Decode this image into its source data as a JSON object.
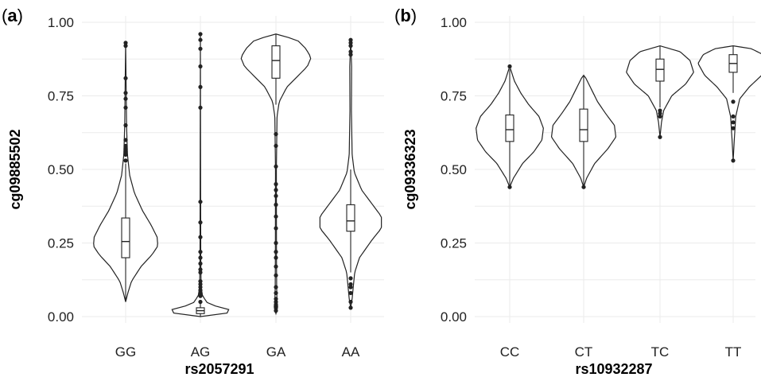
{
  "chart_data": [
    {
      "panel": "(a)",
      "type": "violin",
      "xlabel": "rs2057291",
      "ylabel": "cg09885502",
      "ylim": [
        0,
        1
      ],
      "yticks": [
        "0.00",
        "0.25",
        "0.50",
        "0.75",
        "1.00"
      ],
      "categories": [
        "GG",
        "AG",
        "GA",
        "AA"
      ],
      "grid": true,
      "series": [
        {
          "category": "GG",
          "min": 0.05,
          "max": 0.93,
          "q1": 0.2,
          "median": 0.255,
          "q3": 0.335,
          "whisker_low": 0.05,
          "whisker_high": 0.52,
          "width_profile": [
            [
              0.05,
              0.0
            ],
            [
              0.08,
              0.06
            ],
            [
              0.12,
              0.16
            ],
            [
              0.17,
              0.42
            ],
            [
              0.21,
              0.72
            ],
            [
              0.24,
              0.88
            ],
            [
              0.27,
              0.86
            ],
            [
              0.31,
              0.7
            ],
            [
              0.36,
              0.46
            ],
            [
              0.42,
              0.24
            ],
            [
              0.48,
              0.11
            ],
            [
              0.55,
              0.05
            ],
            [
              0.65,
              0.025
            ],
            [
              0.8,
              0.012
            ],
            [
              0.93,
              0.0
            ]
          ],
          "outliers": [
            0.53,
            0.55,
            0.56,
            0.57,
            0.58,
            0.6,
            0.65,
            0.71,
            0.74,
            0.76,
            0.81,
            0.92,
            0.93
          ]
        },
        {
          "category": "AG",
          "min": 0.0,
          "max": 0.96,
          "q1": 0.01,
          "median": 0.02,
          "q3": 0.03,
          "whisker_low": 0.0,
          "whisker_high": 0.05,
          "width_profile": [
            [
              0.0,
              0.0
            ],
            [
              0.008,
              0.55
            ],
            [
              0.018,
              1.0
            ],
            [
              0.03,
              0.55
            ],
            [
              0.045,
              0.2
            ],
            [
              0.07,
              0.06
            ],
            [
              0.1,
              0.02
            ],
            [
              0.2,
              0.01
            ],
            [
              0.96,
              0.0
            ]
          ],
          "outliers": [
            0.05,
            0.07,
            0.08,
            0.09,
            0.1,
            0.11,
            0.12,
            0.15,
            0.16,
            0.18,
            0.2,
            0.22,
            0.27,
            0.32,
            0.39,
            0.71,
            0.78,
            0.85,
            0.91,
            0.94,
            0.96
          ]
        },
        {
          "category": "GA",
          "min": 0.01,
          "max": 0.96,
          "q1": 0.81,
          "median": 0.87,
          "q3": 0.92,
          "whisker_low": 0.72,
          "whisker_high": 0.96,
          "width_profile": [
            [
              0.01,
              0.0
            ],
            [
              0.03,
              0.05
            ],
            [
              0.05,
              0.03
            ],
            [
              0.1,
              0.02
            ],
            [
              0.2,
              0.015
            ],
            [
              0.5,
              0.012
            ],
            [
              0.68,
              0.03
            ],
            [
              0.73,
              0.09
            ],
            [
              0.78,
              0.3
            ],
            [
              0.82,
              0.62
            ],
            [
              0.85,
              0.86
            ],
            [
              0.88,
              0.96
            ],
            [
              0.91,
              0.82
            ],
            [
              0.94,
              0.58
            ],
            [
              0.96,
              0.0
            ]
          ],
          "outliers": [
            0.02,
            0.03,
            0.04,
            0.05,
            0.06,
            0.08,
            0.1,
            0.14,
            0.17,
            0.2,
            0.22,
            0.25,
            0.3,
            0.34,
            0.38,
            0.41,
            0.43,
            0.45,
            0.51,
            0.58,
            0.62
          ]
        },
        {
          "category": "AA",
          "min": 0.03,
          "max": 0.94,
          "q1": 0.29,
          "median": 0.325,
          "q3": 0.38,
          "whisker_low": 0.15,
          "whisker_high": 0.5,
          "width_profile": [
            [
              0.03,
              0.0
            ],
            [
              0.06,
              0.04
            ],
            [
              0.1,
              0.07
            ],
            [
              0.15,
              0.11
            ],
            [
              0.2,
              0.24
            ],
            [
              0.26,
              0.58
            ],
            [
              0.3,
              0.84
            ],
            [
              0.34,
              0.84
            ],
            [
              0.38,
              0.6
            ],
            [
              0.43,
              0.3
            ],
            [
              0.49,
              0.1
            ],
            [
              0.55,
              0.04
            ],
            [
              0.7,
              0.02
            ],
            [
              0.85,
              0.025
            ],
            [
              0.94,
              0.0
            ]
          ],
          "outliers": [
            0.03,
            0.05,
            0.08,
            0.1,
            0.11,
            0.13,
            0.89,
            0.9,
            0.92,
            0.93,
            0.94
          ]
        }
      ]
    },
    {
      "panel": "(b)",
      "type": "violin",
      "xlabel": "rs10932287",
      "ylabel": "cg09336323",
      "ylim": [
        0,
        1
      ],
      "yticks": [
        "0.00",
        "0.25",
        "0.50",
        "0.75",
        "1.00"
      ],
      "categories": [
        "CC",
        "CT",
        "TC",
        "TT"
      ],
      "grid": true,
      "series": [
        {
          "category": "CC",
          "min": 0.44,
          "max": 0.85,
          "q1": 0.595,
          "median": 0.635,
          "q3": 0.685,
          "whisker_low": 0.44,
          "whisker_high": 0.84,
          "width_profile": [
            [
              0.44,
              0.0
            ],
            [
              0.47,
              0.1
            ],
            [
              0.52,
              0.35
            ],
            [
              0.56,
              0.66
            ],
            [
              0.6,
              0.88
            ],
            [
              0.64,
              0.92
            ],
            [
              0.68,
              0.8
            ],
            [
              0.72,
              0.52
            ],
            [
              0.76,
              0.3
            ],
            [
              0.8,
              0.13
            ],
            [
              0.85,
              0.0
            ]
          ],
          "outliers": [
            0.44,
            0.85
          ]
        },
        {
          "category": "CT",
          "min": 0.44,
          "max": 0.82,
          "q1": 0.595,
          "median": 0.635,
          "q3": 0.705,
          "whisker_low": 0.44,
          "whisker_high": 0.82,
          "width_profile": [
            [
              0.44,
              0.0
            ],
            [
              0.47,
              0.08
            ],
            [
              0.52,
              0.3
            ],
            [
              0.57,
              0.66
            ],
            [
              0.61,
              0.88
            ],
            [
              0.65,
              0.84
            ],
            [
              0.69,
              0.6
            ],
            [
              0.73,
              0.38
            ],
            [
              0.77,
              0.22
            ],
            [
              0.81,
              0.06
            ],
            [
              0.82,
              0.0
            ]
          ],
          "outliers": [
            0.44
          ]
        },
        {
          "category": "TC",
          "min": 0.61,
          "max": 0.92,
          "q1": 0.8,
          "median": 0.84,
          "q3": 0.875,
          "whisker_low": 0.71,
          "whisker_high": 0.92,
          "width_profile": [
            [
              0.61,
              0.0
            ],
            [
              0.66,
              0.04
            ],
            [
              0.7,
              0.1
            ],
            [
              0.75,
              0.32
            ],
            [
              0.79,
              0.7
            ],
            [
              0.83,
              0.92
            ],
            [
              0.87,
              0.82
            ],
            [
              0.9,
              0.55
            ],
            [
              0.92,
              0.0
            ]
          ],
          "outliers": [
            0.61,
            0.68,
            0.69,
            0.7
          ]
        },
        {
          "category": "TT",
          "min": 0.53,
          "max": 0.92,
          "q1": 0.83,
          "median": 0.86,
          "q3": 0.89,
          "whisker_low": 0.76,
          "whisker_high": 0.92,
          "width_profile": [
            [
              0.53,
              0.0
            ],
            [
              0.6,
              0.03
            ],
            [
              0.68,
              0.07
            ],
            [
              0.74,
              0.18
            ],
            [
              0.78,
              0.44
            ],
            [
              0.82,
              0.78
            ],
            [
              0.86,
              0.96
            ],
            [
              0.89,
              0.82
            ],
            [
              0.91,
              0.5
            ],
            [
              0.92,
              0.0
            ]
          ],
          "outliers": [
            0.53,
            0.64,
            0.66,
            0.68,
            0.73
          ]
        }
      ]
    }
  ]
}
